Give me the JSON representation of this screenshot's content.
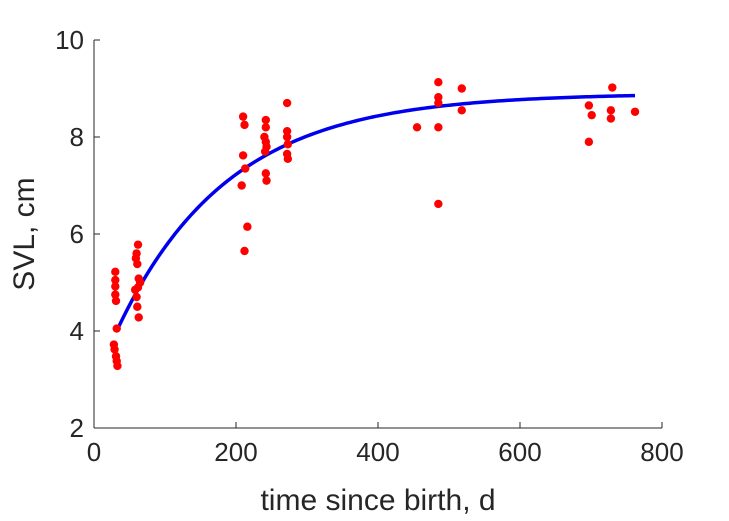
{
  "chart_data": {
    "type": "scatter",
    "xlabel": "time since birth, d",
    "ylabel": "SVL, cm",
    "xlim": [
      0,
      800
    ],
    "ylim": [
      2,
      10
    ],
    "xticks": [
      0,
      200,
      400,
      600,
      800
    ],
    "yticks": [
      2,
      4,
      6,
      8,
      10
    ],
    "xtick_labels": [
      "0",
      "200",
      "400",
      "600",
      "800"
    ],
    "ytick_labels": [
      "2",
      "4",
      "6",
      "8",
      "10"
    ],
    "grid": false,
    "series": [
      {
        "type": "scatter",
        "color": "#ff0000",
        "marker": "filled-circle",
        "points": [
          [
            30,
            5.22
          ],
          [
            30,
            5.05
          ],
          [
            30,
            4.92
          ],
          [
            30,
            4.75
          ],
          [
            31,
            4.62
          ],
          [
            32,
            4.05
          ],
          [
            28,
            3.72
          ],
          [
            29,
            3.62
          ],
          [
            31,
            3.48
          ],
          [
            32,
            3.38
          ],
          [
            33,
            3.28
          ],
          [
            62,
            5.78
          ],
          [
            60,
            5.6
          ],
          [
            59,
            5.5
          ],
          [
            61,
            5.38
          ],
          [
            63,
            5.08
          ],
          [
            65,
            5.0
          ],
          [
            62,
            4.9
          ],
          [
            58,
            4.85
          ],
          [
            60,
            4.7
          ],
          [
            61,
            4.5
          ],
          [
            63,
            4.28
          ],
          [
            210,
            8.42
          ],
          [
            212,
            8.25
          ],
          [
            210,
            7.62
          ],
          [
            213,
            7.35
          ],
          [
            208,
            7.0
          ],
          [
            216,
            6.15
          ],
          [
            212,
            5.65
          ],
          [
            242,
            8.35
          ],
          [
            242,
            8.2
          ],
          [
            240,
            8.0
          ],
          [
            242,
            7.9
          ],
          [
            243,
            7.8
          ],
          [
            241,
            7.7
          ],
          [
            242,
            7.25
          ],
          [
            243,
            7.1
          ],
          [
            272,
            8.7
          ],
          [
            272,
            8.12
          ],
          [
            272,
            8.0
          ],
          [
            273,
            7.85
          ],
          [
            272,
            7.65
          ],
          [
            273,
            7.55
          ],
          [
            455,
            8.2
          ],
          [
            485,
            9.13
          ],
          [
            485,
            8.82
          ],
          [
            485,
            8.7
          ],
          [
            485,
            8.2
          ],
          [
            485,
            6.62
          ],
          [
            518,
            9.0
          ],
          [
            518,
            8.55
          ],
          [
            697,
            8.65
          ],
          [
            701,
            8.45
          ],
          [
            697,
            7.9
          ],
          [
            730,
            9.02
          ],
          [
            728,
            8.55
          ],
          [
            728,
            8.38
          ],
          [
            762,
            8.52
          ]
        ]
      },
      {
        "type": "line",
        "color": "#0000ee",
        "model": {
          "form": "von Bertalanffy",
          "Linf": 8.9,
          "L0": 4.0,
          "k": 0.0064,
          "t0": 32,
          "t_end": 762
        }
      }
    ]
  }
}
